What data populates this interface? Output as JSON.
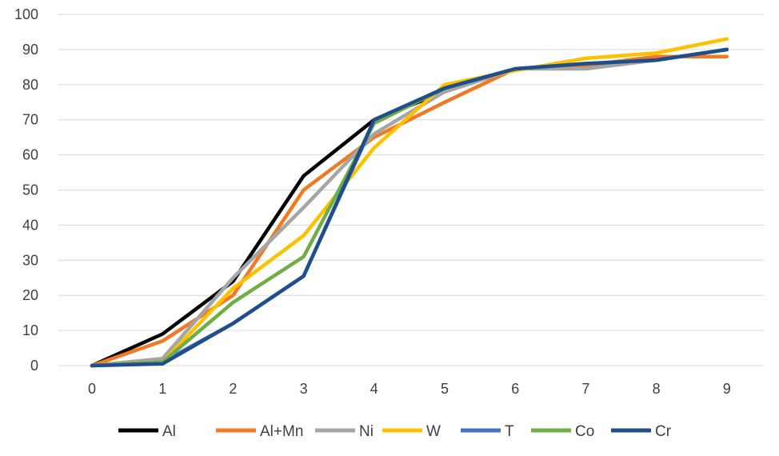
{
  "chart_data": {
    "type": "line",
    "x": [
      0,
      1,
      2,
      3,
      4,
      5,
      6,
      7,
      8,
      9
    ],
    "xticks": [
      "0",
      "1",
      "2",
      "3",
      "4",
      "5",
      "6",
      "7",
      "8",
      "9"
    ],
    "yticks": [
      "0",
      "10",
      "20",
      "30",
      "40",
      "50",
      "60",
      "70",
      "80",
      "90",
      "100"
    ],
    "ylim": [
      0,
      100
    ],
    "xlim": [
      0,
      9
    ],
    "grid": "horizontal",
    "legend_position": "bottom",
    "series": [
      {
        "name": "Al",
        "color": "#000000",
        "values": [
          0,
          9,
          24,
          54,
          70,
          78,
          84.5,
          85,
          87,
          90
        ]
      },
      {
        "name": "Al+Mn",
        "color": "#F07A24",
        "values": [
          0,
          7,
          20,
          50,
          65,
          75,
          84.5,
          85.5,
          88,
          88
        ]
      },
      {
        "name": "Ni",
        "color": "#A5A5A5",
        "values": [
          0,
          2,
          25,
          45,
          66,
          78,
          84.5,
          84.5,
          87,
          90
        ]
      },
      {
        "name": "W",
        "color": "#FFC000",
        "values": [
          0,
          1,
          22,
          37,
          62,
          80,
          84,
          87.5,
          89,
          93
        ]
      },
      {
        "name": "T",
        "color": "#4472C4",
        "values": [
          0,
          1,
          12,
          25.5,
          69.5,
          79,
          84.5,
          86,
          87,
          90
        ]
      },
      {
        "name": "Co",
        "color": "#70AD47",
        "values": [
          0,
          1,
          18,
          31,
          69,
          79,
          84.5,
          86,
          87,
          90
        ]
      },
      {
        "name": "Cr",
        "color": "#1F4E8C",
        "values": [
          0,
          0.5,
          12,
          25.5,
          70,
          79,
          84.5,
          86,
          87,
          90
        ]
      }
    ]
  }
}
